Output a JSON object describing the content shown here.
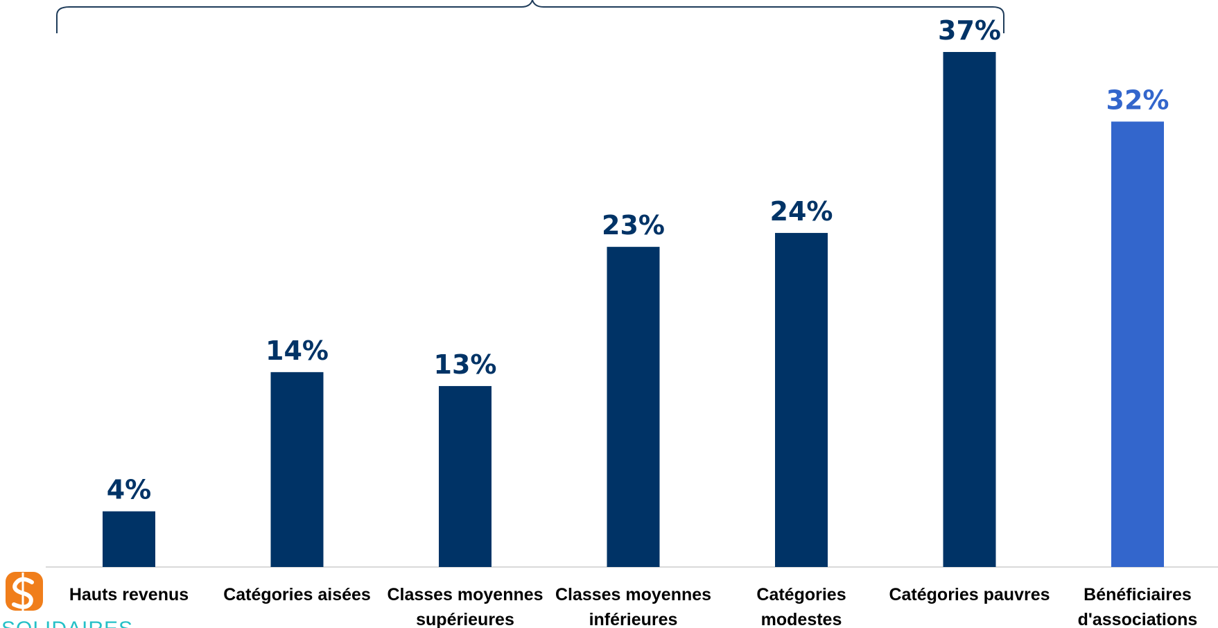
{
  "chart_data": {
    "type": "bar",
    "categories": [
      [
        "Hauts revenus"
      ],
      [
        "Catégories aisées"
      ],
      [
        "Classes moyennes",
        "supérieures"
      ],
      [
        "Classes moyennes",
        "inférieures"
      ],
      [
        "Catégories",
        "modestes"
      ],
      [
        "Catégories pauvres"
      ],
      [
        "Bénéficiaires",
        "d'associations"
      ]
    ],
    "values": [
      4,
      14,
      13,
      23,
      24,
      37,
      32
    ],
    "value_labels": [
      "4%",
      "14%",
      "13%",
      "23%",
      "24%",
      "37%",
      "32%"
    ],
    "ylim": [
      0,
      37
    ],
    "grid": false,
    "colors": {
      "default": "#003366",
      "highlight": "#3366cc",
      "bracket": "#1f3c5a",
      "axis": "#d9d9d9"
    },
    "highlight_index": 6
  },
  "logo": {
    "icon": "s-logo-icon",
    "text": "SOLIDAIRES",
    "color": "#f07e1b",
    "text_color": "#25c0c7"
  }
}
